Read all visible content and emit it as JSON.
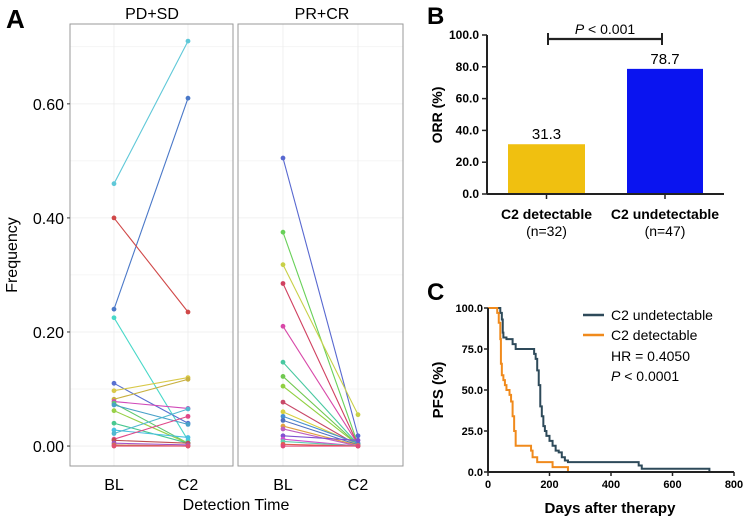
{
  "chart_data": [
    {
      "panel": "A",
      "type": "line",
      "facets": [
        "PD+SD",
        "PR+CR"
      ],
      "categories": [
        "BL",
        "C2"
      ],
      "xlabel": "Detection Time",
      "ylabel": "Frequency",
      "yticks": [
        "0.00",
        "0.20",
        "0.40",
        "0.60"
      ],
      "ylim": [
        -0.035,
        0.74
      ],
      "grid": true,
      "series": {
        "PD+SD": [
          {
            "values": [
              0.46,
              0.71
            ],
            "color": "#5fc8d8"
          },
          {
            "values": [
              0.24,
              0.61
            ],
            "color": "#4a78c8"
          },
          {
            "values": [
              0.4,
              0.235
            ],
            "color": "#d04848"
          },
          {
            "values": [
              0.225,
              0.01
            ],
            "color": "#48d8c8"
          },
          {
            "values": [
              0.11,
              0.04
            ],
            "color": "#5870d0"
          },
          {
            "values": [
              0.097,
              0.12
            ],
            "color": "#d8c848"
          },
          {
            "values": [
              0.082,
              0.117
            ],
            "color": "#c8b040"
          },
          {
            "values": [
              0.078,
              0.066
            ],
            "color": "#d048b8"
          },
          {
            "values": [
              0.075,
              0.005
            ],
            "color": "#60c870"
          },
          {
            "values": [
              0.072,
              0.038
            ],
            "color": "#48a0c8"
          },
          {
            "values": [
              0.062,
              0.005
            ],
            "color": "#98d048"
          },
          {
            "values": [
              0.04,
              0.005
            ],
            "color": "#48c890"
          },
          {
            "values": [
              0.028,
              0.015
            ],
            "color": "#48c0e0"
          },
          {
            "values": [
              0.022,
              0.065
            ],
            "color": "#50b8d0"
          },
          {
            "values": [
              0.012,
              0.052
            ],
            "color": "#e04888"
          },
          {
            "values": [
              0.01,
              0.005
            ],
            "color": "#c05050"
          },
          {
            "values": [
              0.005,
              0.002
            ],
            "color": "#a050c8"
          },
          {
            "values": [
              0.002,
              0.0
            ],
            "color": "#c87850"
          },
          {
            "values": [
              0.0,
              0.0
            ],
            "color": "#e05070"
          }
        ],
        "PR+CR": [
          {
            "values": [
              0.505,
              0.018
            ],
            "color": "#5868d0"
          },
          {
            "values": [
              0.375,
              0.003
            ],
            "color": "#68d058"
          },
          {
            "values": [
              0.318,
              0.055
            ],
            "color": "#c8d048"
          },
          {
            "values": [
              0.285,
              0.002
            ],
            "color": "#d04060"
          },
          {
            "values": [
              0.21,
              0.003
            ],
            "color": "#d848a8"
          },
          {
            "values": [
              0.147,
              0.003
            ],
            "color": "#48c8a0"
          },
          {
            "values": [
              0.122,
              0.002
            ],
            "color": "#70c850"
          },
          {
            "values": [
              0.105,
              0.002
            ],
            "color": "#90d040"
          },
          {
            "values": [
              0.077,
              0.001
            ],
            "color": "#c84868"
          },
          {
            "values": [
              0.06,
              0.003
            ],
            "color": "#d8d040"
          },
          {
            "values": [
              0.052,
              0.005
            ],
            "color": "#4890d0"
          },
          {
            "values": [
              0.045,
              0.002
            ],
            "color": "#5070c0"
          },
          {
            "values": [
              0.035,
              0.001
            ],
            "color": "#e0a040"
          },
          {
            "values": [
              0.03,
              0.0
            ],
            "color": "#c060c0"
          },
          {
            "values": [
              0.018,
              0.01
            ],
            "color": "#8050d0"
          },
          {
            "values": [
              0.012,
              0.0
            ],
            "color": "#d050d0"
          },
          {
            "values": [
              0.008,
              0.0
            ],
            "color": "#60d0b0"
          },
          {
            "values": [
              0.003,
              0.0
            ],
            "color": "#e06050"
          },
          {
            "values": [
              0.0,
              0.0
            ],
            "color": "#e04878"
          }
        ]
      }
    },
    {
      "panel": "B",
      "type": "bar",
      "categories": [
        "C2 detectable",
        "C2 undetectable"
      ],
      "subcategories": [
        "(n=32)",
        "(n=47)"
      ],
      "values": [
        31.3,
        78.7
      ],
      "value_labels": [
        "31.3",
        "78.7"
      ],
      "colors": [
        "#f0c010",
        "#0a14f0"
      ],
      "ylabel": "ORR (%)",
      "yticks": [
        "0.0",
        "20.0",
        "40.0",
        "60.0",
        "80.0",
        "100.0"
      ],
      "ylim": [
        0,
        100
      ],
      "annotation": {
        "p_italic": "P",
        "p_rest": " < 0.001"
      }
    },
    {
      "panel": "C",
      "type": "line",
      "xlabel": "Days after therapy",
      "ylabel": "PFS (%)",
      "xticks": [
        "0",
        "200",
        "400",
        "600",
        "800"
      ],
      "yticks": [
        "0.0",
        "25.0",
        "50.0",
        "75.0",
        "100.0"
      ],
      "xlim": [
        0,
        800
      ],
      "ylim": [
        0,
        100
      ],
      "legend_position": "top-right",
      "series": [
        {
          "name": "C2 undetectable",
          "color": "#2e4a5a",
          "x": [
            0,
            40,
            45,
            48,
            50,
            60,
            80,
            90,
            150,
            155,
            160,
            165,
            170,
            175,
            180,
            185,
            190,
            200,
            210,
            220,
            230,
            240,
            250,
            260,
            280,
            490,
            500,
            530,
            720,
            720
          ],
          "y": [
            100,
            97,
            93,
            85,
            82,
            81,
            78,
            75,
            72,
            69,
            62,
            53,
            40,
            34,
            28,
            25,
            22,
            19,
            16,
            13,
            12,
            9,
            7,
            6,
            6,
            4,
            2,
            2,
            2,
            0
          ]
        },
        {
          "name": "C2 detectable",
          "color": "#f08a1c",
          "x": [
            0,
            30,
            35,
            40,
            42,
            45,
            50,
            55,
            60,
            70,
            75,
            80,
            85,
            90,
            95,
            140,
            145,
            160,
            170,
            210,
            220,
            260,
            265
          ],
          "y": [
            100,
            97,
            91,
            81,
            66,
            59,
            56,
            53,
            50,
            47,
            43,
            34,
            25,
            16,
            16,
            13,
            9,
            6,
            6,
            3,
            3,
            0,
            0
          ]
        }
      ],
      "stats": {
        "hr": "HR = 0.4050",
        "p_italic": "P",
        "p_rest": " < 0.0001"
      }
    }
  ],
  "panel_letters": [
    "A",
    "B",
    "C"
  ]
}
